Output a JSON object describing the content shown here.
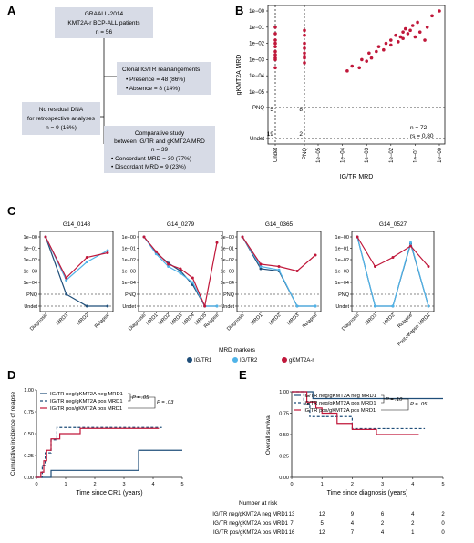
{
  "colors": {
    "igtr1": "#1f4e79",
    "igtr2": "#4fb3e8",
    "gkmt2a": "#c0173a",
    "box": "#d7dbe6",
    "text": "#111111"
  },
  "panels": {
    "A": {
      "label": "A",
      "box1": [
        "GRAALL-2014",
        "KMT2A-r BCP-ALL patients",
        "n = 56"
      ],
      "box2": [
        "Clonal IG/TR rearrangements",
        "• Presence = 48 (86%)",
        "• Absence = 8 (14%)"
      ],
      "box3": [
        "No residual DNA",
        "for retrospective analyses",
        "n = 9 (16%)"
      ],
      "box4": [
        "Comparative study",
        "between IG/TR and gKMT2A MRD",
        "n = 39",
        "• Concordant MRD = 30 (77%)",
        "• Discordant MRD = 9 (23%)"
      ]
    },
    "B": {
      "label": "B"
    },
    "C": {
      "label": "C",
      "legend_title": "MRD markers"
    },
    "D": {
      "label": "D"
    },
    "E": {
      "label": "E",
      "risk_title": "Number at risk"
    }
  },
  "chart_data": [
    {
      "id": "B",
      "type": "scatter",
      "xlabel": "IG/TR MRD",
      "ylabel": "gKMT2A MRD",
      "x_ticks": [
        "Undet",
        "PNQ",
        "1e−05",
        "1e−04",
        "1e−03",
        "1e−02",
        "1e−01",
        "1e−00"
      ],
      "y_ticks": [
        "Undet",
        "PNQ",
        "1e−05",
        "1e−04",
        "1e−03",
        "1e−02",
        "1e−01",
        "1e−00"
      ],
      "annotations": {
        "undet_count": "19",
        "pnq_count": "2",
        "q_undet": "5",
        "q_pnq": "8",
        "n": "n = 72",
        "rs": "rs = 0.80"
      },
      "undet_points": [
        -3.5,
        -3.0,
        -2.7,
        -2.2,
        -2.0,
        -1.8,
        -1.4,
        -1.0,
        -2.9,
        -2.5
      ],
      "pnq_points": [
        -3.2,
        -2.8,
        -2.6,
        -2.3,
        -2.0,
        -1.5,
        -1.2,
        -2.9
      ],
      "points": [
        [
          -3.8,
          -3.7
        ],
        [
          -3.6,
          -3.4
        ],
        [
          -3.3,
          -3.5
        ],
        [
          -3.2,
          -3.0
        ],
        [
          -3.0,
          -3.1
        ],
        [
          -2.9,
          -2.6
        ],
        [
          -2.8,
          -2.9
        ],
        [
          -2.6,
          -2.5
        ],
        [
          -2.5,
          -2.2
        ],
        [
          -2.3,
          -2.4
        ],
        [
          -2.2,
          -2.0
        ],
        [
          -2.0,
          -1.8
        ],
        [
          -2.0,
          -2.1
        ],
        [
          -1.8,
          -1.5
        ],
        [
          -1.7,
          -1.9
        ],
        [
          -1.6,
          -1.6
        ],
        [
          -1.5,
          -1.3
        ],
        [
          -1.5,
          -1.7
        ],
        [
          -1.4,
          -1.1
        ],
        [
          -1.3,
          -1.4
        ],
        [
          -1.2,
          -1.2
        ],
        [
          -1.1,
          -0.9
        ],
        [
          -1.0,
          -1.6
        ],
        [
          -0.9,
          -0.7
        ],
        [
          -0.8,
          -1.3
        ],
        [
          -0.6,
          -1.8
        ],
        [
          -0.5,
          -1.0
        ],
        [
          -0.3,
          -0.3
        ],
        [
          0.0,
          0.0
        ]
      ]
    },
    {
      "id": "C",
      "type": "line",
      "y_ticks": [
        "1e−00",
        "1e−01",
        "1e−02",
        "1e−03",
        "1e−04",
        "PNQ",
        "Undet"
      ],
      "series_names": [
        "IG/TR1",
        "IG/TR2",
        "gKMT2A-r"
      ],
      "subplots": [
        {
          "title": "G14_0148",
          "x": [
            "Diagnosis",
            "MRD1",
            "MRD2",
            "Relapse"
          ],
          "series": [
            {
              "name": "IG/TR1",
              "values": [
                0,
                -5,
                -6,
                -6
              ]
            },
            {
              "name": "IG/TR2",
              "values": [
                0,
                -3.8,
                -2.2,
                -1.2
              ]
            },
            {
              "name": "gKMT2A-r",
              "values": [
                0,
                -3.6,
                -1.8,
                -1.4
              ]
            }
          ]
        },
        {
          "title": "G14_0279",
          "x": [
            "Diagnosis",
            "MRD1",
            "MRD2",
            "MRD3",
            "MRD4",
            "MRD5",
            "Relapse"
          ],
          "series": [
            {
              "name": "IG/TR1",
              "values": [
                0,
                -1.4,
                -2.3,
                -3.0,
                -4.2,
                -6,
                -6
              ]
            },
            {
              "name": "IG/TR2",
              "values": [
                0,
                -1.5,
                -2.6,
                -3.2,
                -4.0,
                -6,
                -6
              ]
            },
            {
              "name": "gKMT2A-r",
              "values": [
                0,
                -1.3,
                -2.4,
                -2.8,
                -3.6,
                -6,
                -0.5
              ]
            }
          ]
        },
        {
          "title": "G14_0365",
          "x": [
            "Diagnosis",
            "MRD1",
            "MRD2",
            "MRD3",
            "Relapse"
          ],
          "series": [
            {
              "name": "IG/TR1",
              "values": [
                0,
                -2.8,
                -3.0,
                -6,
                -6
              ]
            },
            {
              "name": "IG/TR2",
              "values": [
                0,
                -2.6,
                -2.9,
                -6,
                -6
              ]
            },
            {
              "name": "gKMT2A-r",
              "values": [
                0,
                -2.4,
                -2.6,
                -3.0,
                -1.6
              ]
            }
          ]
        },
        {
          "title": "G14_0527",
          "x": [
            "Diagnosis",
            "MRD1",
            "MRD2",
            "Relapse",
            "Post-relapse MRD1"
          ],
          "series": [
            {
              "name": "IG/TR1",
              "values": [
                0,
                -6,
                -6,
                -0.6,
                -6
              ]
            },
            {
              "name": "IG/TR2",
              "values": [
                0,
                -6,
                -6,
                -0.5,
                -6
              ]
            },
            {
              "name": "gKMT2A-r",
              "values": [
                0,
                -2.6,
                -1.8,
                -0.8,
                -2.6
              ]
            }
          ]
        }
      ]
    },
    {
      "id": "D",
      "type": "line",
      "xlabel": "Time since CR1 (years)",
      "ylabel": "Cumulative incidence of relapse",
      "xlim": [
        0,
        5
      ],
      "ylim": [
        0,
        1
      ],
      "x_ticks": [
        "0",
        "1",
        "2",
        "3",
        "4",
        "5"
      ],
      "y_ticks": [
        "0.00",
        "0.25",
        "0.50",
        "0.75",
        "1.00"
      ],
      "legend": [
        "IG/TR neg/gKMT2A neg MRD1",
        "IG/TR neg/gKMT2A pos MRD1",
        "IG/TR pos/gKMT2A pos MRD1"
      ],
      "p1": "P = .05",
      "p2": "P = .03",
      "series": [
        {
          "name": "IG/TR neg/gKMT2A neg MRD1",
          "x": [
            0,
            0.2,
            0.5,
            3.3,
            3.5,
            5
          ],
          "y": [
            0,
            0,
            0.08,
            0.08,
            0.31,
            0.31
          ]
        },
        {
          "name": "IG/TR neg/gKMT2A pos MRD1",
          "x": [
            0,
            0.2,
            0.3,
            0.5,
            0.7,
            1.5,
            4.3
          ],
          "y": [
            0,
            0.14,
            0.28,
            0.43,
            0.57,
            0.57,
            0.57
          ]
        },
        {
          "name": "IG/TR pos/gKMT2A pos MRD1",
          "x": [
            0,
            0.15,
            0.25,
            0.35,
            0.5,
            0.8,
            1.5,
            4.2
          ],
          "y": [
            0,
            0.06,
            0.19,
            0.31,
            0.44,
            0.5,
            0.56,
            0.56
          ]
        }
      ]
    },
    {
      "id": "E",
      "type": "line",
      "xlabel": "Time since diagnosis (years)",
      "ylabel": "Overall survival",
      "xlim": [
        0,
        5
      ],
      "ylim": [
        0,
        1
      ],
      "x_ticks": [
        "0",
        "1",
        "2",
        "3",
        "4",
        "5"
      ],
      "y_ticks": [
        "0.00",
        "0.25",
        "0.50",
        "0.75",
        "1.00"
      ],
      "legend": [
        "IG/TR neg/gKMT2A neg MRD1",
        "IG/TR neg/gKMT2A pos MRD1",
        "IG/TR pos/gKMT2A pos MRD1"
      ],
      "p1": "P = .10",
      "p2": "P = .05",
      "series": [
        {
          "name": "IG/TR neg/gKMT2A neg MRD1",
          "x": [
            0,
            0.5,
            0.7,
            5
          ],
          "y": [
            1,
            1,
            0.92,
            0.92
          ]
        },
        {
          "name": "IG/TR neg/gKMT2A pos MRD1",
          "x": [
            0,
            0.4,
            0.6,
            0.9,
            2.0,
            4.4
          ],
          "y": [
            1,
            0.86,
            0.71,
            0.71,
            0.57,
            0.57
          ]
        },
        {
          "name": "IG/TR pos/gKMT2A pos MRD1",
          "x": [
            0,
            0.5,
            0.8,
            1.0,
            1.5,
            2.0,
            2.8,
            4.2
          ],
          "y": [
            1,
            0.88,
            0.81,
            0.75,
            0.63,
            0.56,
            0.5,
            0.5
          ]
        }
      ],
      "risk_rows": [
        {
          "label": "IG/TR neg/gKMT2A neg MRD1",
          "values": [
            "13",
            "12",
            "9",
            "6",
            "4",
            "2"
          ]
        },
        {
          "label": "IG/TR neg/gKMT2A pos MRD1",
          "values": [
            "7",
            "5",
            "4",
            "2",
            "2",
            "0"
          ]
        },
        {
          "label": "IG/TR pos/gKMT2A pos MRD1",
          "values": [
            "16",
            "12",
            "7",
            "4",
            "1",
            "0"
          ]
        }
      ]
    }
  ]
}
